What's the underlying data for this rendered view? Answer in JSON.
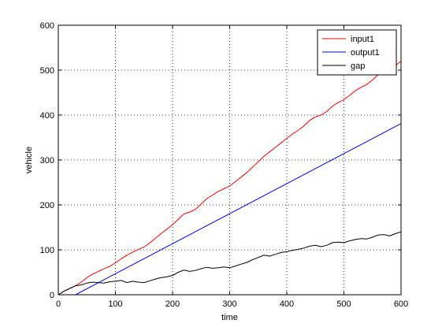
{
  "chart_data": {
    "type": "line",
    "title": "",
    "xlabel": "time",
    "ylabel": "vehicle",
    "xlim": [
      0,
      600
    ],
    "ylim": [
      0,
      600
    ],
    "xticks": [
      0,
      100,
      200,
      300,
      400,
      500,
      600
    ],
    "yticks": [
      0,
      100,
      200,
      300,
      400,
      500,
      600
    ],
    "grid": true,
    "legend": "top-right",
    "series": [
      {
        "name": "input1",
        "color": "#ff0000",
        "x": [
          0,
          10,
          20,
          30,
          40,
          50,
          60,
          70,
          80,
          90,
          100,
          110,
          120,
          130,
          140,
          150,
          160,
          170,
          180,
          190,
          200,
          210,
          220,
          230,
          240,
          250,
          260,
          270,
          280,
          290,
          300,
          310,
          320,
          330,
          340,
          350,
          360,
          370,
          380,
          390,
          400,
          410,
          420,
          430,
          440,
          450,
          460,
          470,
          480,
          490,
          500,
          510,
          520,
          530,
          540,
          550,
          560,
          570,
          580,
          590,
          600
        ],
        "values": [
          0,
          8,
          14,
          20,
          28,
          38,
          46,
          52,
          58,
          63,
          71,
          80,
          88,
          95,
          101,
          106,
          115,
          126,
          136,
          146,
          156,
          168,
          180,
          184,
          190,
          202,
          214,
          222,
          230,
          236,
          242,
          252,
          262,
          272,
          284,
          296,
          308,
          318,
          328,
          338,
          348,
          358,
          366,
          376,
          388,
          396,
          400,
          408,
          420,
          428,
          434,
          444,
          454,
          462,
          468,
          478,
          490,
          498,
          502,
          510,
          520
        ]
      },
      {
        "name": "output1",
        "color": "#0000ff",
        "x": [
          30,
          600
        ],
        "values": [
          0,
          381
        ]
      },
      {
        "name": "gap",
        "color": "#000000",
        "x": [
          0,
          10,
          20,
          30,
          40,
          50,
          60,
          70,
          80,
          90,
          100,
          110,
          120,
          130,
          140,
          150,
          160,
          170,
          180,
          190,
          200,
          210,
          220,
          230,
          240,
          250,
          260,
          270,
          280,
          290,
          300,
          310,
          320,
          330,
          340,
          350,
          360,
          370,
          380,
          390,
          400,
          410,
          420,
          430,
          440,
          450,
          460,
          470,
          480,
          490,
          500,
          510,
          520,
          530,
          540,
          550,
          560,
          570,
          580,
          590,
          600
        ],
        "values": [
          0,
          8,
          14,
          20,
          22,
          26,
          28,
          27,
          26,
          29,
          30,
          32,
          27,
          30,
          28,
          27,
          31,
          35,
          38,
          40,
          43,
          50,
          55,
          52,
          54,
          58,
          61,
          59,
          60,
          62,
          60,
          64,
          68,
          72,
          78,
          83,
          88,
          86,
          90,
          94,
          96,
          99,
          101,
          104,
          108,
          110,
          107,
          110,
          116,
          117,
          116,
          120,
          123,
          125,
          124,
          128,
          133,
          134,
          131,
          136,
          140
        ]
      }
    ]
  }
}
